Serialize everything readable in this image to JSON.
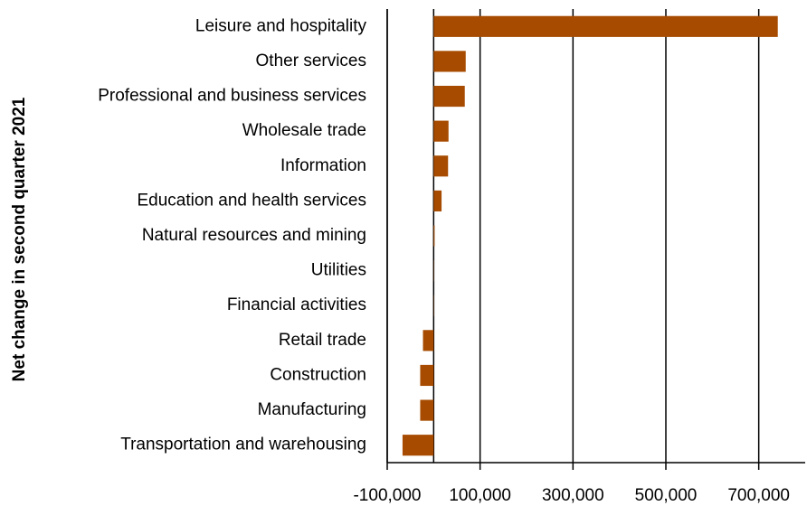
{
  "chart_data": {
    "type": "barh",
    "y_label": "Net change in second quarter 2021",
    "categories": [
      "Leisure and hospitality",
      "Other services",
      "Professional and business services",
      "Wholesale trade",
      "Information",
      "Education and health services",
      "Natural resources and mining",
      "Utilities",
      "Financial activities",
      "Retail trade",
      "Construction",
      "Manufacturing",
      "Transportation and warehousing"
    ],
    "values": [
      741000,
      69000,
      67000,
      32000,
      31000,
      17000,
      2000,
      500,
      -500,
      -23000,
      -29000,
      -29000,
      -67000
    ],
    "color": "#a64b00",
    "xlim": [
      -100000,
      800000
    ],
    "xticks": [
      {
        "value": -100000,
        "label": "-100,000"
      },
      {
        "value": 100000,
        "label": "100,000"
      },
      {
        "value": 300000,
        "label": "300,000"
      },
      {
        "value": 500000,
        "label": "500,000"
      },
      {
        "value": 700000,
        "label": "700,000"
      }
    ],
    "grid": true
  }
}
